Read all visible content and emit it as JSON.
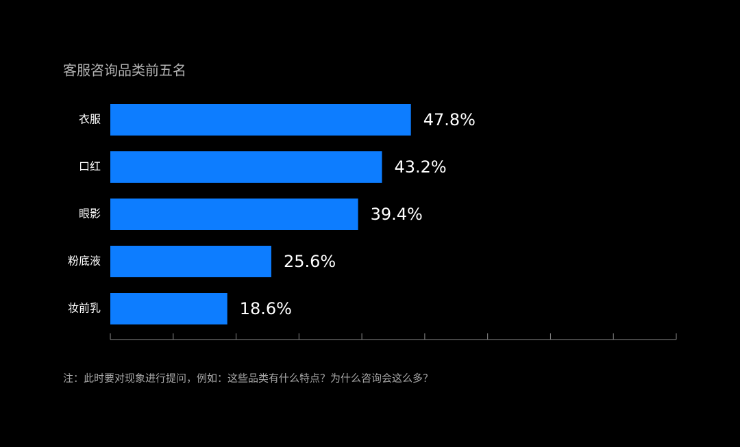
{
  "chart_data": {
    "type": "bar",
    "orientation": "horizontal",
    "title": "客服咨询品类前五名",
    "categories": [
      "衣服",
      "口红",
      "眼影",
      "粉底液",
      "妆前乳"
    ],
    "values": [
      47.8,
      43.2,
      39.4,
      25.6,
      18.6
    ],
    "value_labels": [
      "47.8%",
      "43.2%",
      "39.4%",
      "25.6%",
      "18.6%"
    ],
    "color": "#0d7dff",
    "xlim": [
      0,
      90
    ],
    "xticks": [
      0,
      10,
      20,
      30,
      40,
      50,
      60,
      70,
      80,
      90
    ],
    "note": "注：此时要对现象进行提问，例如：这些品类有什么特点？为什么咨询会这么多？"
  }
}
